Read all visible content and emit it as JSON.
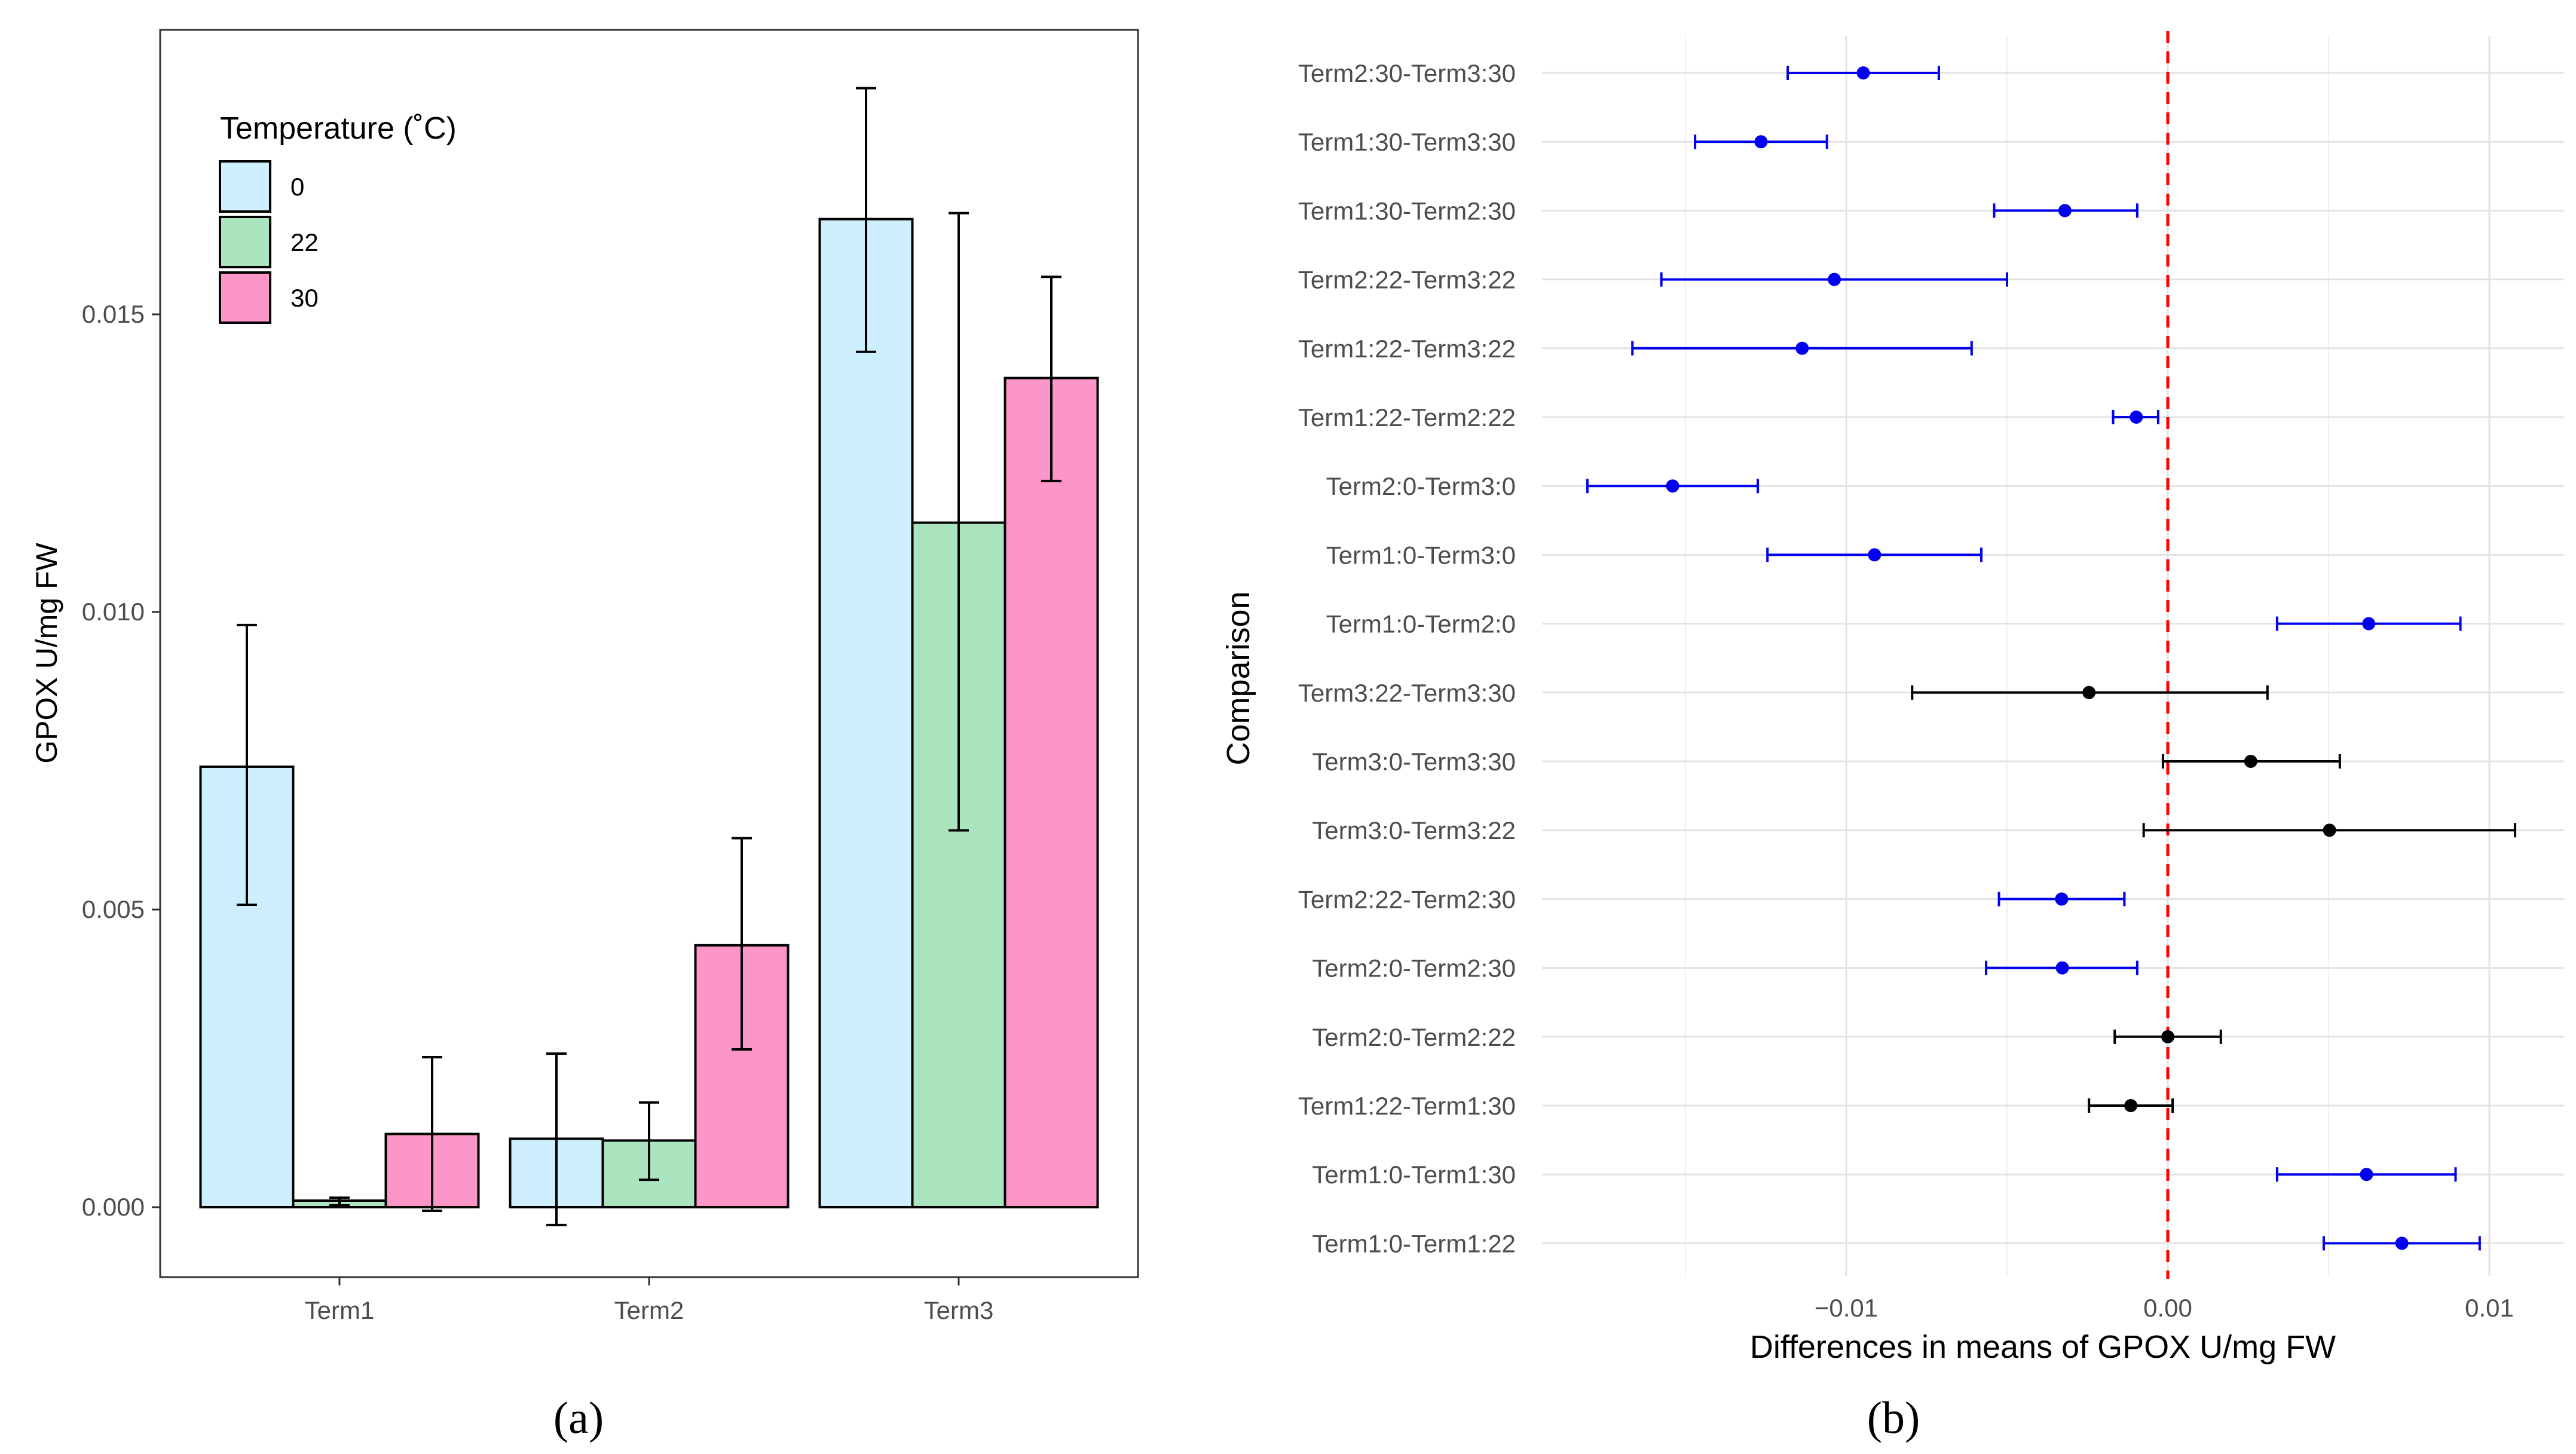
{
  "chart_data": [
    {
      "id": "a",
      "type": "bar",
      "panel_label": "(a)",
      "ylabel": "GPOX U/mg FW",
      "xlabel": "",
      "ylim": [
        -0.0012,
        0.0197
      ],
      "yticks": [
        0.0,
        0.005,
        0.01,
        0.015
      ],
      "ytick_labels": [
        "0.000",
        "0.005",
        "0.010",
        "0.015"
      ],
      "categories": [
        "Term1",
        "Term2",
        "Term3"
      ],
      "legend": {
        "title": "Temperature (˚C)",
        "position": "top-left",
        "entries": [
          "0",
          "22",
          "30"
        ]
      },
      "series": [
        {
          "name": "0",
          "color": "#cdeefc",
          "values": [
            0.0074,
            0.00115,
            0.0166
          ],
          "err_low": [
            0.00508,
            -0.0003,
            0.01437
          ],
          "err_high": [
            0.00978,
            0.00258,
            0.0188
          ]
        },
        {
          "name": "22",
          "color": "#abe5bf",
          "values": [
            0.00011,
            0.00112,
            0.0115
          ],
          "err_low": [
            3e-05,
            0.00046,
            0.00633
          ],
          "err_high": [
            0.00016,
            0.00176,
            0.0167
          ]
        },
        {
          "name": "30",
          "color": "#fc95c8",
          "values": [
            0.00123,
            0.0044,
            0.01393
          ],
          "err_low": [
            -6e-05,
            0.00265,
            0.0122
          ],
          "err_high": [
            0.00252,
            0.0062,
            0.01563
          ]
        }
      ]
    },
    {
      "id": "b",
      "type": "scatter",
      "panel_label": "(b)",
      "title": "",
      "xlabel": "Differences in means of GPOX U/mg FW",
      "ylabel": "Comparison",
      "xlim": [
        -0.0195,
        0.0112
      ],
      "xticks": [
        -0.01,
        0.0,
        0.01
      ],
      "xtick_labels": [
        "−0.01",
        "0.00",
        "0.01"
      ],
      "reference_line": 0.0,
      "reference_color": "#ff0000",
      "significant_color": "#0000ee",
      "nonsignificant_color": "#000000",
      "comparisons": [
        {
          "label": "Term2:30-Term3:30",
          "diff": -0.00947,
          "lwr": -0.01182,
          "upr": -0.00712,
          "significant": true
        },
        {
          "label": "Term1:30-Term3:30",
          "diff": -0.01265,
          "lwr": -0.0147,
          "upr": -0.0106,
          "significant": true
        },
        {
          "label": "Term1:30-Term2:30",
          "diff": -0.0032,
          "lwr": -0.0054,
          "upr": -0.00095,
          "significant": true
        },
        {
          "label": "Term2:22-Term3:22",
          "diff": -0.01037,
          "lwr": -0.01575,
          "upr": -0.005,
          "significant": true
        },
        {
          "label": "Term1:22-Term3:22",
          "diff": -0.01137,
          "lwr": -0.01665,
          "upr": -0.0061,
          "significant": true
        },
        {
          "label": "Term1:22-Term2:22",
          "diff": -0.00098,
          "lwr": -0.0017,
          "upr": -0.0003,
          "significant": true
        },
        {
          "label": "Term2:0-Term3:0",
          "diff": -0.0154,
          "lwr": -0.01805,
          "upr": -0.01275,
          "significant": true
        },
        {
          "label": "Term1:0-Term3:0",
          "diff": -0.00912,
          "lwr": -0.01245,
          "upr": -0.0058,
          "significant": true
        },
        {
          "label": "Term1:0-Term2:0",
          "diff": 0.00625,
          "lwr": 0.0034,
          "upr": 0.0091,
          "significant": true
        },
        {
          "label": "Term3:22-Term3:30",
          "diff": -0.00245,
          "lwr": -0.00795,
          "upr": 0.0031,
          "significant": false
        },
        {
          "label": "Term3:0-Term3:30",
          "diff": 0.00258,
          "lwr": -0.00015,
          "upr": 0.00535,
          "significant": false
        },
        {
          "label": "Term3:0-Term3:22",
          "diff": 0.00503,
          "lwr": -0.00075,
          "upr": 0.0108,
          "significant": false
        },
        {
          "label": "Term2:22-Term2:30",
          "diff": -0.0033,
          "lwr": -0.00525,
          "upr": -0.00135,
          "significant": true
        },
        {
          "label": "Term2:0-Term2:30",
          "diff": -0.00328,
          "lwr": -0.00565,
          "upr": -0.00095,
          "significant": true
        },
        {
          "label": "Term2:0-Term2:22",
          "diff": 0.0,
          "lwr": -0.00165,
          "upr": 0.00165,
          "significant": false
        },
        {
          "label": "Term1:22-Term1:30",
          "diff": -0.00115,
          "lwr": -0.00245,
          "upr": 0.00015,
          "significant": false
        },
        {
          "label": "Term1:0-Term1:30",
          "diff": 0.00618,
          "lwr": 0.0034,
          "upr": 0.00895,
          "significant": true
        },
        {
          "label": "Term1:0-Term1:22",
          "diff": 0.00728,
          "lwr": 0.00485,
          "upr": 0.0097,
          "significant": true
        }
      ]
    }
  ]
}
